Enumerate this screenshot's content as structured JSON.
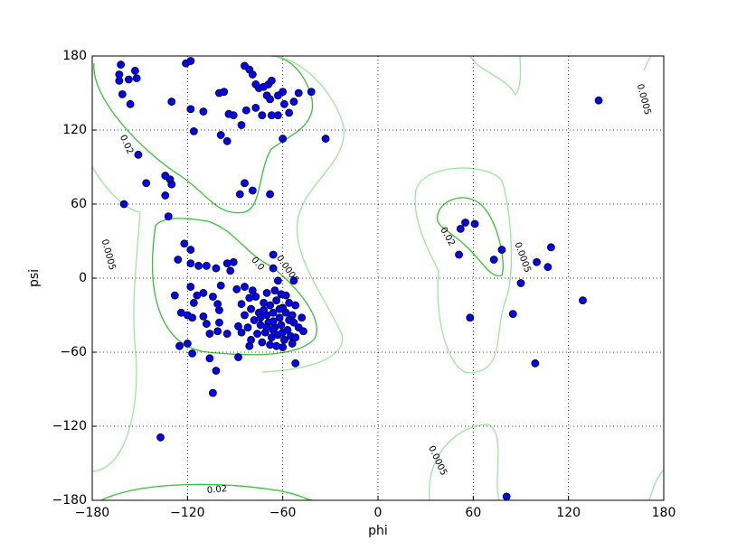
{
  "chart_data": {
    "type": "scatter",
    "x_label": "phi",
    "y_label": "psi",
    "color": "#0000ff",
    "grid": true,
    "xlim": [
      -180,
      180
    ],
    "ylim": [
      -180,
      180
    ],
    "xticks": [
      {
        "value": -180,
        "label": "−180"
      },
      {
        "value": -120,
        "label": "−120"
      },
      {
        "value": -60,
        "label": "−60"
      },
      0,
      60,
      120,
      180
    ],
    "yticks": [
      {
        "value": -180,
        "label": "−180"
      },
      {
        "value": -120,
        "label": "−120"
      },
      {
        "value": -60,
        "label": "−60"
      },
      0,
      60,
      120,
      180
    ],
    "contour_labels": [
      "0.02",
      "0.0005",
      "0.02",
      "0.0",
      "0.0005",
      "0.02",
      "0.0005",
      "0.0005",
      "0.0005"
    ],
    "x": [
      -162,
      -163,
      -163,
      -153,
      -152,
      -157,
      -161,
      -156,
      -151,
      -146,
      -160,
      -130,
      -121,
      -118,
      -118,
      -116,
      -110,
      -100,
      -97,
      -99,
      -95,
      -94,
      -91,
      -86,
      -84,
      -81,
      -79,
      -77,
      -75,
      -72,
      -69,
      -67,
      -70,
      -68,
      -73,
      -67,
      -63,
      -60,
      -59,
      -56,
      -53,
      -50,
      -42,
      -33,
      -60,
      -83,
      -84,
      -87,
      -79,
      -68,
      -134,
      -131,
      -130,
      -134,
      -132,
      -77,
      -63,
      -122,
      -118,
      -126,
      -118,
      -113,
      -108,
      -102,
      -95,
      -91,
      -93,
      -118,
      -128,
      -114,
      -110,
      -104,
      -116,
      -101,
      -124,
      -120,
      -117,
      -110,
      -100,
      -108,
      -100,
      -106,
      -101,
      -95,
      -88,
      -125,
      -120,
      -117,
      -106,
      -102,
      -104,
      -88,
      -137,
      -81,
      -99,
      -89,
      -84,
      -81,
      -86,
      -72,
      -68,
      -64,
      -60,
      -56,
      -75,
      -70,
      -66,
      -62,
      -58,
      -54,
      -78,
      -74,
      -69,
      -65,
      -61,
      -57,
      -53,
      -76,
      -71,
      -67,
      -63,
      -59,
      -55,
      -73,
      -68,
      -64,
      -60,
      -80,
      -82,
      -77,
      -70,
      -65,
      -58,
      -52,
      -50,
      -48,
      -84,
      -86,
      -80,
      -72,
      -66,
      -62,
      -70,
      -56,
      -74,
      -60,
      -66,
      -52,
      -79,
      -63,
      -66,
      -66,
      -53,
      -61,
      -52,
      -47,
      -54,
      52,
      55,
      61,
      51,
      78,
      73,
      58,
      100,
      107,
      109,
      90,
      85,
      129,
      99,
      139,
      81
    ],
    "values": [
      173,
      165,
      160,
      168,
      162,
      161,
      149,
      141,
      100,
      77,
      60,
      143,
      174,
      176,
      137,
      119,
      135,
      150,
      151,
      116,
      111,
      133,
      132,
      124,
      172,
      169,
      165,
      157,
      154,
      155,
      157,
      160,
      148,
      145,
      132,
      132,
      148,
      151,
      141,
      134,
      143,
      150,
      151,
      113,
      113,
      136,
      77,
      68,
      71,
      68,
      83,
      80,
      76,
      67,
      50,
      138,
      132,
      28,
      23,
      15,
      12,
      10,
      10,
      8,
      12,
      13,
      6,
      -7,
      -14,
      -14,
      -12,
      -15,
      -20,
      -21,
      -28,
      -30,
      -32,
      -31,
      -26,
      -37,
      -36,
      -45,
      -43,
      -45,
      -39,
      -55,
      -53,
      -61,
      -65,
      -75,
      -93,
      -64,
      -129,
      -55,
      -6,
      -9,
      -7,
      -16,
      -21,
      -20,
      -22,
      -18,
      -24,
      -20,
      -28,
      -30,
      -28,
      -32,
      -28,
      -30,
      -34,
      -38,
      -36,
      -40,
      -38,
      -42,
      -36,
      -45,
      -44,
      -48,
      -46,
      -50,
      -47,
      -52,
      -54,
      -55,
      -56,
      -25,
      -40,
      -15,
      -12,
      -10,
      -14,
      -22,
      -40,
      -32,
      -30,
      -44,
      -50,
      -26,
      -35,
      -25,
      -40,
      -34,
      -32,
      -44,
      -42,
      -48,
      -10,
      -2,
      19,
      8,
      -2,
      -13,
      -69,
      -43,
      -53,
      40,
      45,
      44,
      19,
      23,
      15,
      -32,
      13,
      9,
      25,
      -4,
      -29,
      -18,
      -69,
      144,
      -177
    ]
  }
}
